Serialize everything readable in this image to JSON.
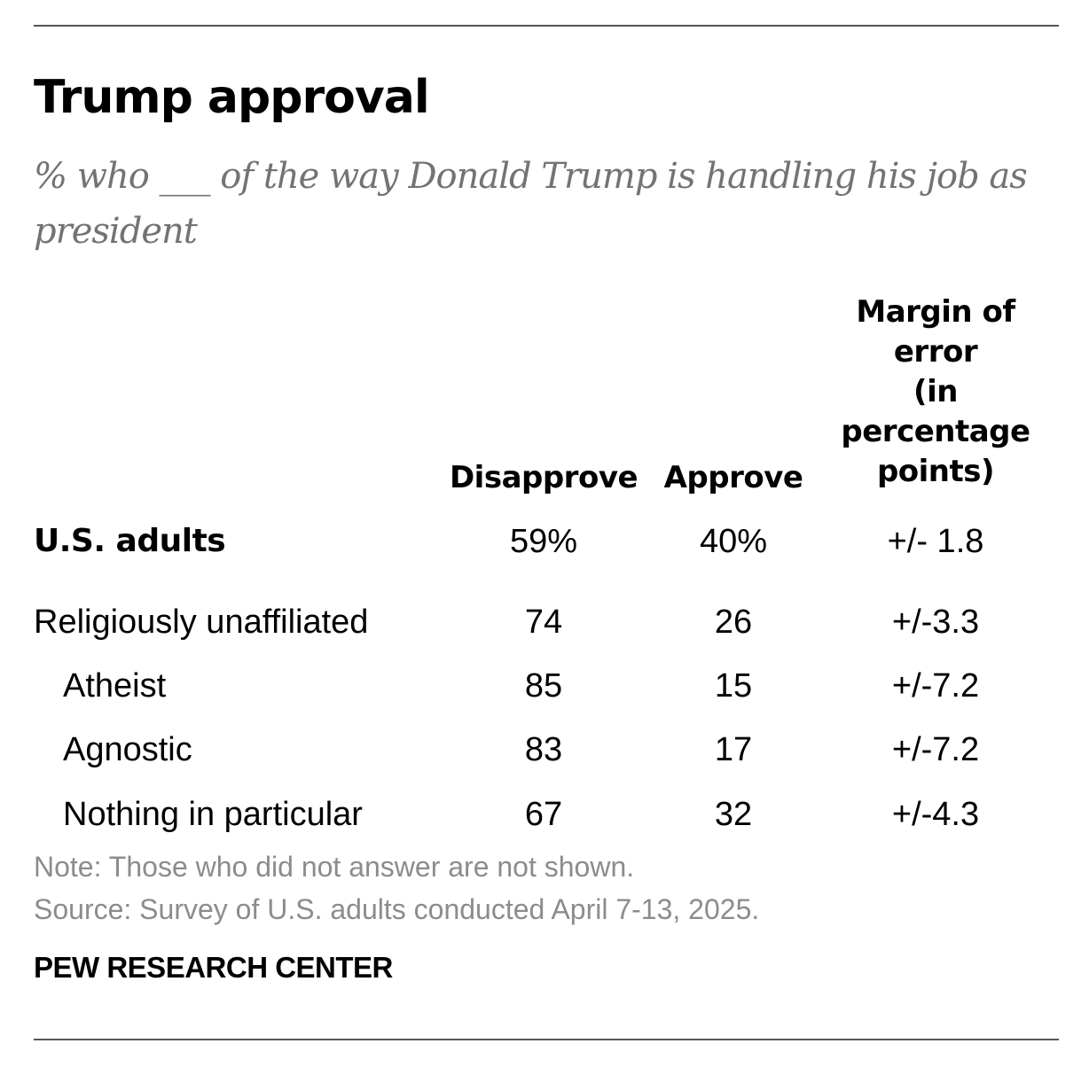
{
  "chart_data": {
    "type": "table",
    "title": "Trump approval",
    "subtitle": "% who ___ of the way Donald Trump is handling his job as president",
    "columns": [
      "Disapprove",
      "Approve",
      "Margin of\nerror\n(in\npercentage\npoints)"
    ],
    "rows": [
      {
        "label": "U.S. adults",
        "disapprove": "59%",
        "approve": "40%",
        "moe": "+/- 1.8"
      },
      {
        "label": "Religiously unaffiliated",
        "disapprove": "74",
        "approve": "26",
        "moe": "+/-3.3"
      },
      {
        "label": "Atheist",
        "disapprove": "85",
        "approve": "15",
        "moe": "+/-7.2"
      },
      {
        "label": "Agnostic",
        "disapprove": "83",
        "approve": "17",
        "moe": "+/-7.2"
      },
      {
        "label": "Nothing in particular",
        "disapprove": "67",
        "approve": "32",
        "moe": "+/-4.3"
      }
    ],
    "note": "Note: Those who did not answer are not shown.",
    "source": "Source: Survey of U.S. adults conducted April 7-13, 2025."
  },
  "branding": "PEW RESEARCH CENTER"
}
